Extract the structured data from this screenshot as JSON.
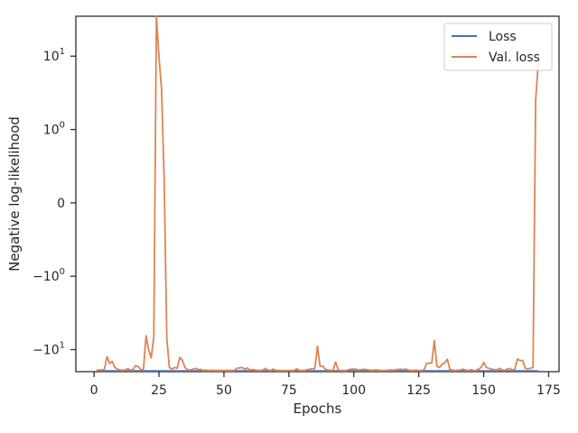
{
  "chart_data": {
    "type": "line",
    "title": "",
    "xlabel": "Epochs",
    "ylabel": "Negative log-likelihood",
    "yscale": "symlog",
    "xlim": [
      -7,
      179
    ],
    "ylim": [
      -20,
      35
    ],
    "grid": false,
    "legend": "top-right",
    "x_ticks": [
      {
        "value": 0,
        "label": "0"
      },
      {
        "value": 25,
        "label": "25"
      },
      {
        "value": 50,
        "label": "50"
      },
      {
        "value": 75,
        "label": "75"
      },
      {
        "value": 100,
        "label": "100"
      },
      {
        "value": 125,
        "label": "125"
      },
      {
        "value": 150,
        "label": "150"
      },
      {
        "value": 175,
        "label": "175"
      }
    ],
    "y_ticks": [
      {
        "value": 10,
        "base": "10",
        "exp": "1"
      },
      {
        "value": 1,
        "base": "10",
        "exp": "0"
      },
      {
        "value": 0,
        "base": "0",
        "exp": ""
      },
      {
        "value": -1,
        "base": "−10",
        "exp": "0"
      },
      {
        "value": -10,
        "base": "−10",
        "exp": "1"
      }
    ],
    "series": [
      {
        "name": "Loss",
        "color": "#4c72b0",
        "points": [
          [
            1,
            -19.5
          ],
          [
            171,
            -19.5
          ]
        ]
      },
      {
        "name": "Val. loss",
        "color": "#dd8452",
        "points": [
          [
            1,
            -19.0
          ],
          [
            2,
            -18.9
          ],
          [
            3,
            -19.0
          ],
          [
            4,
            -18.5
          ],
          [
            5,
            -12.5
          ],
          [
            6,
            -15.5
          ],
          [
            7,
            -14.5
          ],
          [
            8,
            -17.5
          ],
          [
            9,
            -18.5
          ],
          [
            10,
            -19.0
          ],
          [
            11,
            -19.0
          ],
          [
            12,
            -18.9
          ],
          [
            13,
            -18.2
          ],
          [
            14,
            -19.0
          ],
          [
            15,
            -18.8
          ],
          [
            16,
            -16.5
          ],
          [
            17,
            -17.0
          ],
          [
            18,
            -18.8
          ],
          [
            19,
            -18.8
          ],
          [
            20,
            -6.5
          ],
          [
            21,
            -10.0
          ],
          [
            22,
            -13.0
          ],
          [
            23,
            -6.8
          ],
          [
            24,
            35.0
          ],
          [
            25,
            10.0
          ],
          [
            26,
            3.5
          ],
          [
            27,
            0.3
          ],
          [
            28,
            -7.0
          ],
          [
            29,
            -17.5
          ],
          [
            30,
            -18.5
          ],
          [
            31,
            -17.5
          ],
          [
            32,
            -18.0
          ],
          [
            33,
            -12.8
          ],
          [
            34,
            -14.0
          ],
          [
            35,
            -17.5
          ],
          [
            36,
            -18.8
          ],
          [
            37,
            -19.0
          ],
          [
            38,
            -18.5
          ],
          [
            39,
            -18.0
          ],
          [
            40,
            -18.8
          ],
          [
            41,
            -18.6
          ],
          [
            42,
            -19.2
          ],
          [
            43,
            -19.0
          ],
          [
            44,
            -19.3
          ],
          [
            45,
            -19.1
          ],
          [
            46,
            -19.3
          ],
          [
            47,
            -19.2
          ],
          [
            48,
            -19.3
          ],
          [
            49,
            -19.2
          ],
          [
            50,
            -19.3
          ],
          [
            51,
            -19.3
          ],
          [
            52,
            -19.3
          ],
          [
            53,
            -19.2
          ],
          [
            54,
            -19.3
          ],
          [
            55,
            -18.0
          ],
          [
            56,
            -17.8
          ],
          [
            57,
            -17.5
          ],
          [
            58,
            -18.5
          ],
          [
            59,
            -17.8
          ],
          [
            60,
            -19.0
          ],
          [
            61,
            -18.7
          ],
          [
            62,
            -19.0
          ],
          [
            63,
            -19.2
          ],
          [
            64,
            -19.3
          ],
          [
            65,
            -19.0
          ],
          [
            66,
            -18.0
          ],
          [
            67,
            -19.0
          ],
          [
            68,
            -19.3
          ],
          [
            69,
            -18.5
          ],
          [
            70,
            -19.2
          ],
          [
            71,
            -19.3
          ],
          [
            72,
            -19.3
          ],
          [
            73,
            -19.2
          ],
          [
            74,
            -19.3
          ],
          [
            75,
            -19.2
          ],
          [
            76,
            -19.3
          ],
          [
            77,
            -19.3
          ],
          [
            78,
            -18.2
          ],
          [
            79,
            -19.2
          ],
          [
            80,
            -19.3
          ],
          [
            81,
            -19.2
          ],
          [
            82,
            -18.8
          ],
          [
            83,
            -18.5
          ],
          [
            84,
            -18.3
          ],
          [
            85,
            -18.2
          ],
          [
            86,
            -9.0
          ],
          [
            87,
            -17.0
          ],
          [
            88,
            -16.8
          ],
          [
            89,
            -18.5
          ],
          [
            90,
            -19.0
          ],
          [
            91,
            -19.1
          ],
          [
            92,
            -19.1
          ],
          [
            93,
            -14.8
          ],
          [
            94,
            -19.0
          ],
          [
            95,
            -19.2
          ],
          [
            96,
            -19.3
          ],
          [
            97,
            -19.3
          ],
          [
            98,
            -18.8
          ],
          [
            99,
            -18.5
          ],
          [
            100,
            -18.5
          ],
          [
            101,
            -18.6
          ],
          [
            102,
            -19.0
          ],
          [
            103,
            -18.7
          ],
          [
            104,
            -18.6
          ],
          [
            105,
            -18.8
          ],
          [
            106,
            -19.0
          ],
          [
            107,
            -19.2
          ],
          [
            108,
            -19.0
          ],
          [
            109,
            -19.0
          ],
          [
            110,
            -19.2
          ],
          [
            111,
            -19.3
          ],
          [
            112,
            -19.2
          ],
          [
            113,
            -19.1
          ],
          [
            114,
            -19.0
          ],
          [
            115,
            -19.0
          ],
          [
            116,
            -18.9
          ],
          [
            117,
            -18.6
          ],
          [
            118,
            -18.6
          ],
          [
            119,
            -18.7
          ],
          [
            120,
            -18.5
          ],
          [
            121,
            -19.0
          ],
          [
            122,
            -19.2
          ],
          [
            123,
            -19.2
          ],
          [
            124,
            -19.0
          ],
          [
            125,
            -19.3
          ],
          [
            126,
            -19.2
          ],
          [
            127,
            -19.0
          ],
          [
            128,
            -15.5
          ],
          [
            129,
            -15.3
          ],
          [
            130,
            -15.2
          ],
          [
            131,
            -7.5
          ],
          [
            132,
            -17.0
          ],
          [
            133,
            -17.5
          ],
          [
            134,
            -15.8
          ],
          [
            135,
            -15.2
          ],
          [
            136,
            -13.5
          ],
          [
            137,
            -18.8
          ],
          [
            138,
            -19.0
          ],
          [
            139,
            -19.2
          ],
          [
            140,
            -19.1
          ],
          [
            141,
            -19.0
          ],
          [
            142,
            -18.5
          ],
          [
            143,
            -19.0
          ],
          [
            144,
            -19.3
          ],
          [
            145,
            -18.8
          ],
          [
            146,
            -19.2
          ],
          [
            147,
            -19.3
          ],
          [
            148,
            -18.5
          ],
          [
            149,
            -17.5
          ],
          [
            150,
            -15.0
          ],
          [
            151,
            -17.5
          ],
          [
            152,
            -18.0
          ],
          [
            153,
            -18.5
          ],
          [
            154,
            -18.8
          ],
          [
            155,
            -19.0
          ],
          [
            156,
            -18.0
          ],
          [
            157,
            -18.8
          ],
          [
            158,
            -19.2
          ],
          [
            159,
            -18.5
          ],
          [
            160,
            -18.0
          ],
          [
            161,
            -19.0
          ],
          [
            162,
            -18.5
          ],
          [
            163,
            -13.5
          ],
          [
            164,
            -14.2
          ],
          [
            165,
            -14.0
          ],
          [
            166,
            -18.0
          ],
          [
            167,
            -18.3
          ],
          [
            168,
            -18.0
          ],
          [
            169,
            -17.5
          ],
          [
            170,
            2.5
          ],
          [
            171,
            8.0
          ]
        ]
      }
    ]
  }
}
